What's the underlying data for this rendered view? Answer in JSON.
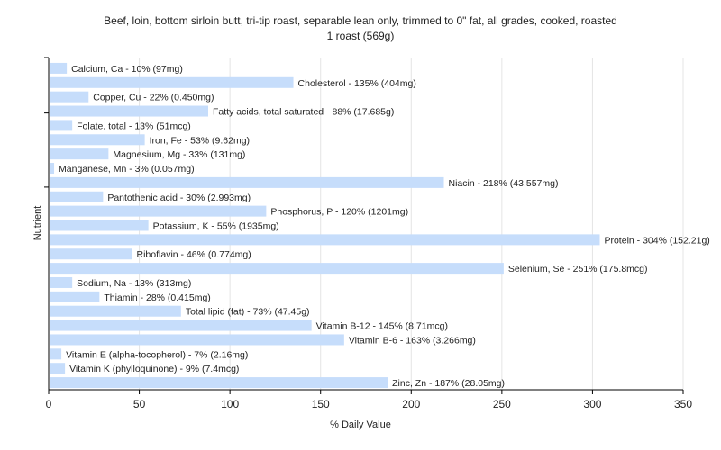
{
  "chart_data": {
    "type": "bar",
    "orientation": "horizontal",
    "title": "Beef, loin, bottom sirloin butt, tri-tip roast, separable lean only, trimmed to 0\" fat, all grades, cooked, roasted",
    "subtitle": "1 roast (569g)",
    "xlabel": "% Daily Value",
    "ylabel": "Nutrient",
    "xlim": [
      0,
      350
    ],
    "xticks": [
      "0",
      "50",
      "100",
      "150",
      "200",
      "250",
      "300",
      "350"
    ],
    "grid": true,
    "bar_color": "#c6ddfb",
    "categories": [
      "Calcium, Ca",
      "Cholesterol",
      "Copper, Cu",
      "Fatty acids, total saturated",
      "Folate, total",
      "Iron, Fe",
      "Magnesium, Mg",
      "Manganese, Mn",
      "Niacin",
      "Pantothenic acid",
      "Phosphorus, P",
      "Potassium, K",
      "Protein",
      "Riboflavin",
      "Selenium, Se",
      "Sodium, Na",
      "Thiamin",
      "Total lipid (fat)",
      "Vitamin B-12",
      "Vitamin B-6",
      "Vitamin E (alpha-tocopherol)",
      "Vitamin K (phylloquinone)",
      "Zinc, Zn"
    ],
    "values": [
      10,
      135,
      22,
      88,
      13,
      53,
      33,
      3,
      218,
      30,
      120,
      55,
      304,
      46,
      251,
      13,
      28,
      73,
      145,
      163,
      7,
      9,
      187
    ],
    "labels": [
      "Calcium, Ca - 10% (97mg)",
      "Cholesterol - 135% (404mg)",
      "Copper, Cu - 22% (0.450mg)",
      "Fatty acids, total saturated - 88% (17.685g)",
      "Folate, total - 13% (51mcg)",
      "Iron, Fe - 53% (9.62mg)",
      "Magnesium, Mg - 33% (131mg)",
      "Manganese, Mn - 3% (0.057mg)",
      "Niacin - 218% (43.557mg)",
      "Pantothenic acid - 30% (2.993mg)",
      "Phosphorus, P - 120% (1201mg)",
      "Potassium, K - 55% (1935mg)",
      "Protein - 304% (152.21g)",
      "Riboflavin - 46% (0.774mg)",
      "Selenium, Se - 251% (175.8mcg)",
      "Sodium, Na - 13% (313mg)",
      "Thiamin - 28% (0.415mg)",
      "Total lipid (fat) - 73% (47.45g)",
      "Vitamin B-12 - 145% (8.71mcg)",
      "Vitamin B-6 - 163% (3.266mg)",
      "Vitamin E (alpha-tocopherol) - 7% (2.16mg)",
      "Vitamin K (phylloquinone) - 9% (7.4mcg)",
      "Zinc, Zn - 187% (28.05mg)"
    ]
  }
}
